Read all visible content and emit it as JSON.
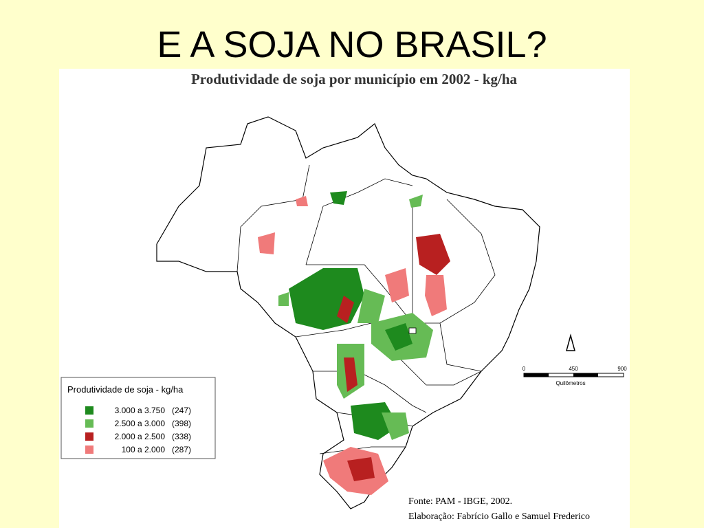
{
  "slide_title": "E A SOJA NO BRASIL?",
  "map": {
    "title": "Produtividade de soja por município em 2002 - kg/ha",
    "legend": {
      "title": "Produtividade de soja - kg/ha",
      "items": [
        {
          "label": "3.000 a 3.750",
          "count": "(247)",
          "color": "#1e8a1e"
        },
        {
          "label": "2.500 a 3.000",
          "count": "(398)",
          "color": "#66bb55"
        },
        {
          "label": "2.000 a 2.500",
          "count": "(338)",
          "color": "#b82020"
        },
        {
          "label": "100 a 2.000",
          "count": "(287)",
          "color": "#f07a7a"
        }
      ]
    },
    "scale": {
      "ticks": [
        "0",
        "450",
        "900"
      ],
      "unit": "Quilômetros"
    },
    "source": "Fonte: PAM - IBGE, 2002.",
    "credits": "Elaboração: Fabrício Gallo e Samuel Frederico"
  }
}
